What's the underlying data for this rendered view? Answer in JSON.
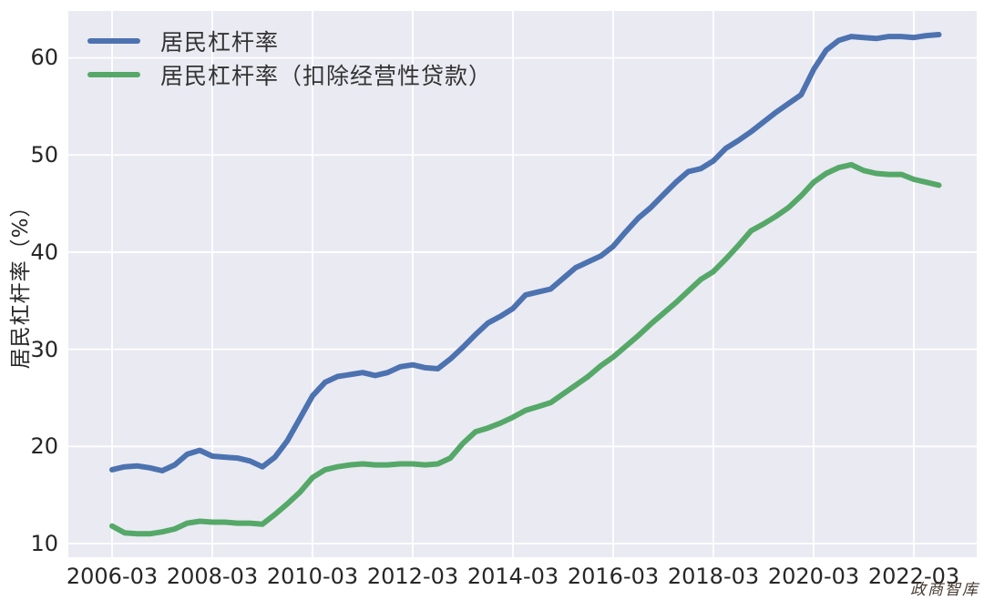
{
  "watermark": "政商智库",
  "chart_data": {
    "type": "line",
    "title": "",
    "xlabel": "",
    "ylabel": "居民杠杆率（%）",
    "background": "#EAEAF2",
    "gridline_color": "#FFFFFF",
    "grid": true,
    "legend_position": "upper left",
    "ylim": [
      8.6,
      64.8
    ],
    "y_ticks": [
      10,
      20,
      30,
      40,
      50,
      60
    ],
    "y_ticklabels": [
      "10",
      "20",
      "30",
      "40",
      "50",
      "60"
    ],
    "x_ticklabels": [
      "2006-03",
      "2008-03",
      "2010-03",
      "2012-03",
      "2014-03",
      "2016-03",
      "2018-03",
      "2020-03",
      "2022-03"
    ],
    "x_tick_quarter_index": [
      0,
      8,
      16,
      24,
      32,
      40,
      48,
      56,
      64
    ],
    "x": [
      "2006-03",
      "2006-06",
      "2006-09",
      "2006-12",
      "2007-03",
      "2007-06",
      "2007-09",
      "2007-12",
      "2008-03",
      "2008-06",
      "2008-09",
      "2008-12",
      "2009-03",
      "2009-06",
      "2009-09",
      "2009-12",
      "2010-03",
      "2010-06",
      "2010-09",
      "2010-12",
      "2011-03",
      "2011-06",
      "2011-09",
      "2011-12",
      "2012-03",
      "2012-06",
      "2012-09",
      "2012-12",
      "2013-03",
      "2013-06",
      "2013-09",
      "2013-12",
      "2014-03",
      "2014-06",
      "2014-09",
      "2014-12",
      "2015-03",
      "2015-06",
      "2015-09",
      "2015-12",
      "2016-03",
      "2016-06",
      "2016-09",
      "2016-12",
      "2017-03",
      "2017-06",
      "2017-09",
      "2017-12",
      "2018-03",
      "2018-06",
      "2018-09",
      "2018-12",
      "2019-03",
      "2019-06",
      "2019-09",
      "2019-12",
      "2020-03",
      "2020-06",
      "2020-09",
      "2020-12",
      "2021-03",
      "2021-06",
      "2021-09",
      "2021-12",
      "2022-03",
      "2022-06",
      "2022-09"
    ],
    "series": [
      {
        "name": "居民杠杆率",
        "color": "#4C72B0",
        "values": [
          17.6,
          17.9,
          18.0,
          17.8,
          17.5,
          18.1,
          19.2,
          19.6,
          19.0,
          18.9,
          18.8,
          18.5,
          17.9,
          18.9,
          20.6,
          22.9,
          25.2,
          26.6,
          27.2,
          27.4,
          27.6,
          27.3,
          27.6,
          28.2,
          28.4,
          28.1,
          28.0,
          29.0,
          30.2,
          31.5,
          32.7,
          33.4,
          34.2,
          35.6,
          35.9,
          36.2,
          37.3,
          38.4,
          39.0,
          39.6,
          40.6,
          42.1,
          43.5,
          44.6,
          45.9,
          47.2,
          48.3,
          48.6,
          49.4,
          50.7,
          51.5,
          52.4,
          53.4,
          54.4,
          55.3,
          56.2,
          58.8,
          60.8,
          61.8,
          62.2,
          62.1,
          62.0,
          62.2,
          62.2,
          62.1,
          62.3,
          62.4
        ]
      },
      {
        "name": "居民杠杆率（扣除经营性贷款）",
        "color": "#55A868",
        "values": [
          11.8,
          11.1,
          11.0,
          11.0,
          11.2,
          11.5,
          12.1,
          12.3,
          12.2,
          12.2,
          12.1,
          12.1,
          12.0,
          13.0,
          14.1,
          15.3,
          16.8,
          17.6,
          17.9,
          18.1,
          18.2,
          18.1,
          18.1,
          18.2,
          18.2,
          18.1,
          18.2,
          18.8,
          20.3,
          21.5,
          21.9,
          22.4,
          23.0,
          23.7,
          24.1,
          24.5,
          25.4,
          26.3,
          27.2,
          28.3,
          29.2,
          30.3,
          31.4,
          32.6,
          33.7,
          34.8,
          36.0,
          37.2,
          38.0,
          39.3,
          40.7,
          42.2,
          42.9,
          43.7,
          44.6,
          45.8,
          47.2,
          48.1,
          48.7,
          49.0,
          48.4,
          48.1,
          48.0,
          48.0,
          47.5,
          47.2,
          46.9
        ]
      }
    ]
  }
}
